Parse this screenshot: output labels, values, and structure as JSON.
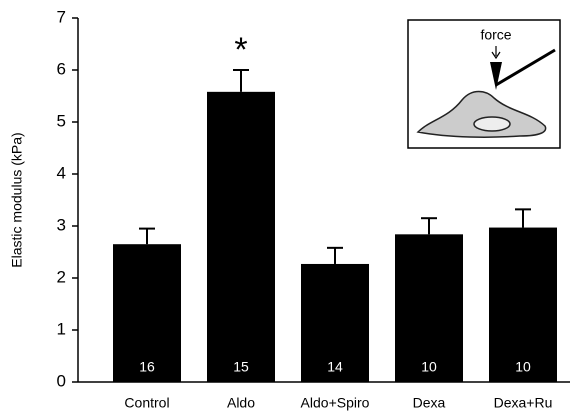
{
  "chart_data": {
    "type": "bar",
    "y_label": "Elastic modulus (kPa)",
    "categories": [
      "Control",
      "Aldo",
      "Aldo+Spiro",
      "Dexa",
      "Dexa+Ru"
    ],
    "values": [
      2.65,
      5.58,
      2.27,
      2.84,
      2.97
    ],
    "errors": [
      0.3,
      0.42,
      0.31,
      0.31,
      0.35
    ],
    "sample_sizes": [
      16,
      15,
      14,
      10,
      10
    ],
    "color": "#000000",
    "ylim": [
      0,
      7
    ],
    "yticks": [
      0,
      1,
      2,
      3,
      4,
      5,
      6,
      7
    ],
    "annotation": {
      "text": "*",
      "category": "Aldo"
    },
    "inset_label": "force"
  }
}
